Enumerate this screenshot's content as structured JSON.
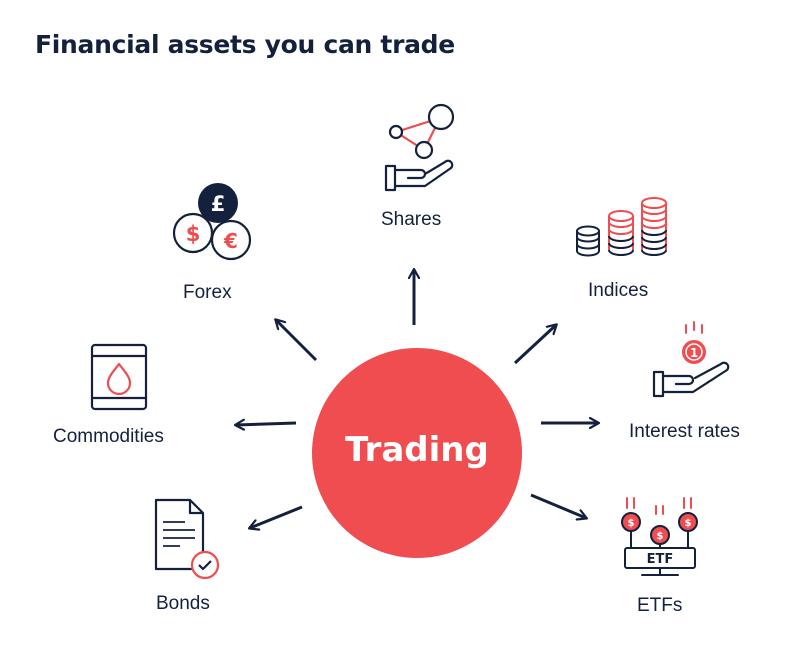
{
  "title": "Financial assets you can trade",
  "center": {
    "label": "Trading"
  },
  "assets": [
    {
      "id": "shares",
      "label": "Shares",
      "icon": "hand-network-icon"
    },
    {
      "id": "forex",
      "label": "Forex",
      "icon": "currency-coins-icon"
    },
    {
      "id": "indices",
      "label": "Indices",
      "icon": "coin-stacks-icon"
    },
    {
      "id": "commodities",
      "label": "Commodities",
      "icon": "oil-barrel-icon"
    },
    {
      "id": "interest-rates",
      "label": "Interest rates",
      "icon": "hand-coin-icon"
    },
    {
      "id": "bonds",
      "label": "Bonds",
      "icon": "certificate-document-icon"
    },
    {
      "id": "etfs",
      "label": "ETFs",
      "icon": "etf-coins-icon"
    }
  ],
  "icon_text": {
    "forex_symbols": [
      "£",
      "$",
      "€"
    ],
    "interest_coin": "1",
    "etf_coin": "$",
    "etf_board": "ETF"
  },
  "colors": {
    "navy": "#14213d",
    "red": "#ef4d50",
    "background": "#ffffff"
  }
}
